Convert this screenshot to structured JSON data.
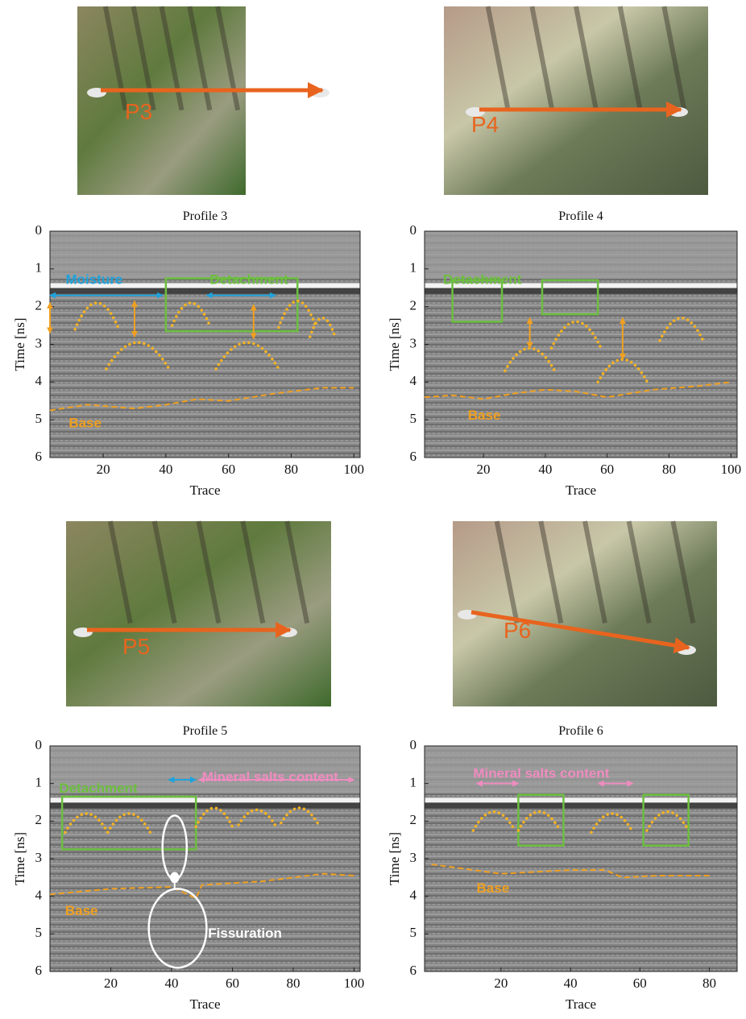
{
  "chart_data": [
    {
      "type": "radargram",
      "photo_label": "P3",
      "title": "Profile 3",
      "xlabel": "Trace",
      "ylabel": "Time [ns]",
      "xlim": [
        3,
        102
      ],
      "ylim": [
        0,
        6
      ],
      "invert_y": true,
      "xticks": [
        20,
        40,
        60,
        80,
        100
      ],
      "yticks": [
        0,
        1,
        2,
        3,
        4,
        5,
        6
      ],
      "annotations": [
        {
          "text": "Moisture",
          "color": "#1fa2dc"
        },
        {
          "text": "Detachment",
          "color": "#6cbf3f"
        },
        {
          "text": "Base",
          "color": "#f0a020"
        }
      ]
    },
    {
      "type": "radargram",
      "photo_label": "P4",
      "title": "Profile 4",
      "xlabel": "Trace",
      "ylabel": "Time [ns]",
      "xlim": [
        1,
        102
      ],
      "ylim": [
        0,
        6
      ],
      "invert_y": true,
      "xticks": [
        20,
        40,
        60,
        80,
        100
      ],
      "yticks": [
        0,
        1,
        2,
        3,
        4,
        5,
        6
      ],
      "annotations": [
        {
          "text": "Detachment",
          "color": "#6cbf3f"
        },
        {
          "text": "Base",
          "color": "#f0a020"
        }
      ]
    },
    {
      "type": "radargram",
      "photo_label": "P5",
      "title": "Profile 5",
      "xlabel": "Trace",
      "ylabel": "Time [ns]",
      "xlim": [
        0,
        102
      ],
      "ylim": [
        0,
        6
      ],
      "invert_y": true,
      "xticks": [
        20,
        40,
        60,
        80,
        100
      ],
      "yticks": [
        0,
        1,
        2,
        3,
        4,
        5,
        6
      ],
      "annotations": [
        {
          "text": "Detachment",
          "color": "#6cbf3f"
        },
        {
          "text": "Mineral salts content",
          "color": "#f08cc0"
        },
        {
          "text": "Base",
          "color": "#f0a020"
        },
        {
          "text": "Fissuration",
          "color": "#ffffff"
        }
      ]
    },
    {
      "type": "radargram",
      "photo_label": "P6",
      "title": "Profile 6",
      "xlabel": "Trace",
      "ylabel": "Time [ns]",
      "xlim": [
        -2,
        88
      ],
      "ylim": [
        0,
        6
      ],
      "invert_y": true,
      "xticks": [
        20,
        40,
        60,
        80
      ],
      "yticks": [
        0,
        1,
        2,
        3,
        4,
        5,
        6
      ],
      "annotations": [
        {
          "text": "Mineral salts content",
          "color": "#f08cc0"
        },
        {
          "text": "Base",
          "color": "#f0a020"
        }
      ]
    }
  ]
}
